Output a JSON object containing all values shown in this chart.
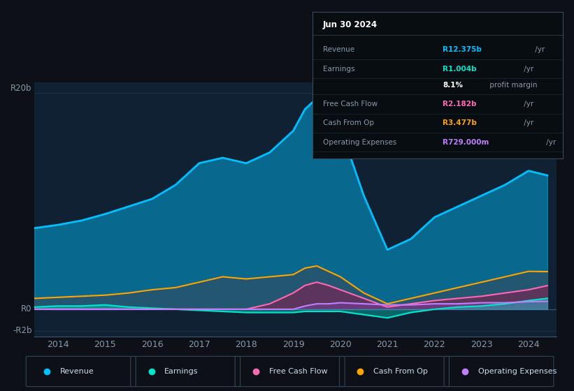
{
  "bg_color": "#0d1117",
  "chart_area_color": "#0f2133",
  "ylabel_top": "R20b",
  "ylabel_zero": "R0",
  "ylabel_neg": "-R2b",
  "info_box_title": "Jun 30 2024",
  "info_rows": [
    {
      "label": "Revenue",
      "value": "R12.375b",
      "unit": " /yr",
      "color": "#00bfff"
    },
    {
      "label": "Earnings",
      "value": "R1.004b",
      "unit": " /yr",
      "color": "#00e5cc"
    },
    {
      "label": "",
      "value": "8.1%",
      "unit": " profit margin",
      "color": "#ffffff"
    },
    {
      "label": "Free Cash Flow",
      "value": "R2.182b",
      "unit": " /yr",
      "color": "#ff69b4"
    },
    {
      "label": "Cash From Op",
      "value": "R3.477b",
      "unit": " /yr",
      "color": "#ffa500"
    },
    {
      "label": "Operating Expenses",
      "value": "R729.000m",
      "unit": " /yr",
      "color": "#bf7fff"
    }
  ],
  "legend": [
    {
      "label": "Revenue",
      "color": "#00bfff"
    },
    {
      "label": "Earnings",
      "color": "#00e5cc"
    },
    {
      "label": "Free Cash Flow",
      "color": "#ff69b4"
    },
    {
      "label": "Cash From Op",
      "color": "#ffa500"
    },
    {
      "label": "Operating Expenses",
      "color": "#bf7fff"
    }
  ],
  "x": [
    2013.5,
    2014,
    2014.5,
    2015,
    2015.5,
    2016,
    2016.5,
    2017,
    2017.5,
    2018,
    2018.5,
    2019,
    2019.25,
    2019.5,
    2019.75,
    2020,
    2020.5,
    2021,
    2021.5,
    2022,
    2022.5,
    2023,
    2023.5,
    2024,
    2024.4
  ],
  "revenue": [
    7.5,
    7.8,
    8.2,
    8.8,
    9.5,
    10.2,
    11.5,
    13.5,
    14.0,
    13.5,
    14.5,
    16.5,
    18.5,
    19.5,
    17.5,
    16.8,
    10.5,
    5.5,
    6.5,
    8.5,
    9.5,
    10.5,
    11.5,
    12.8,
    12.375
  ],
  "earnings": [
    0.2,
    0.3,
    0.3,
    0.4,
    0.2,
    0.1,
    0.0,
    -0.1,
    -0.2,
    -0.3,
    -0.3,
    -0.3,
    -0.2,
    -0.2,
    -0.2,
    -0.2,
    -0.5,
    -0.8,
    -0.3,
    0.0,
    0.2,
    0.3,
    0.5,
    0.8,
    1.004
  ],
  "free_cash_flow": [
    0.0,
    0.0,
    0.0,
    0.0,
    0.0,
    0.0,
    0.0,
    0.0,
    0.0,
    0.0,
    0.5,
    1.5,
    2.2,
    2.5,
    2.2,
    1.8,
    1.0,
    0.2,
    0.5,
    0.8,
    1.0,
    1.2,
    1.5,
    1.8,
    2.182
  ],
  "cash_from_op": [
    1.0,
    1.1,
    1.2,
    1.3,
    1.5,
    1.8,
    2.0,
    2.5,
    3.0,
    2.8,
    3.0,
    3.2,
    3.8,
    4.0,
    3.5,
    3.0,
    1.5,
    0.5,
    1.0,
    1.5,
    2.0,
    2.5,
    3.0,
    3.5,
    3.477
  ],
  "op_expenses": [
    0.0,
    0.0,
    0.0,
    0.0,
    0.0,
    0.0,
    0.0,
    0.0,
    0.0,
    0.0,
    0.0,
    0.0,
    0.3,
    0.5,
    0.5,
    0.6,
    0.5,
    0.4,
    0.4,
    0.5,
    0.5,
    0.6,
    0.6,
    0.7,
    0.729
  ],
  "ylim": [
    -2.5,
    21
  ],
  "xlim": [
    2013.5,
    2024.6
  ],
  "xticks": [
    2014,
    2015,
    2016,
    2017,
    2018,
    2019,
    2020,
    2021,
    2022,
    2023,
    2024
  ]
}
